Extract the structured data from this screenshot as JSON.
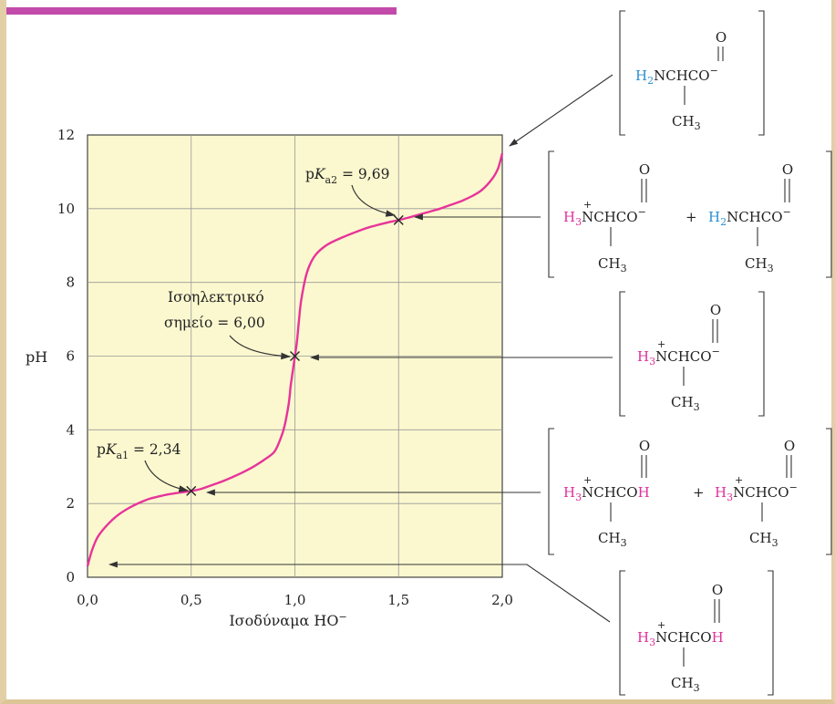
{
  "chart_data": {
    "type": "line",
    "xlabel": "Ισοδύναμα HO⁻",
    "ylabel": "pH",
    "xlim": [
      0,
      2
    ],
    "ylim": [
      0,
      12
    ],
    "x_ticks": [
      "0,0",
      "0,5",
      "1,0",
      "1,5",
      "2,0"
    ],
    "y_ticks": [
      "0",
      "2",
      "4",
      "6",
      "8",
      "10",
      "12"
    ],
    "grid": true,
    "plot_background": "#fbf8cf",
    "line_color": "#e8339a",
    "series": [
      {
        "x": [
          0.0,
          0.02,
          0.05,
          0.1,
          0.15,
          0.2,
          0.25,
          0.3,
          0.35,
          0.4,
          0.45,
          0.5,
          0.55,
          0.6,
          0.65,
          0.7,
          0.75,
          0.8,
          0.85,
          0.9,
          0.93,
          0.95,
          0.97,
          0.98,
          0.99,
          1.0,
          1.01,
          1.02,
          1.03,
          1.05,
          1.07,
          1.1,
          1.15,
          1.2,
          1.25,
          1.3,
          1.35,
          1.4,
          1.45,
          1.5,
          1.55,
          1.6,
          1.65,
          1.7,
          1.75,
          1.8,
          1.85,
          1.9,
          1.95,
          1.98,
          2.0
        ],
        "y": [
          0.3,
          0.7,
          1.1,
          1.45,
          1.7,
          1.88,
          2.02,
          2.13,
          2.2,
          2.26,
          2.3,
          2.34,
          2.4,
          2.5,
          2.6,
          2.72,
          2.85,
          3.0,
          3.18,
          3.4,
          3.75,
          4.1,
          4.7,
          5.2,
          5.6,
          6.0,
          6.4,
          7.0,
          7.5,
          8.1,
          8.45,
          8.75,
          9.0,
          9.15,
          9.27,
          9.38,
          9.48,
          9.56,
          9.63,
          9.69,
          9.76,
          9.84,
          9.92,
          10.0,
          10.1,
          10.2,
          10.33,
          10.5,
          10.8,
          11.1,
          11.5
        ]
      }
    ],
    "annotations": [
      {
        "label_parts": [
          "p",
          "K",
          "a2",
          " = 9,69"
        ],
        "x": 1.5,
        "y": 9.69
      },
      {
        "label_lines": [
          "Ισοηλεκτρικό",
          "σημείο = 6,00"
        ],
        "x": 1.0,
        "y": 6.0
      },
      {
        "label_parts": [
          "p",
          "K",
          "a1",
          " = 2,34"
        ],
        "x": 0.5,
        "y": 2.34
      }
    ]
  },
  "structures": {
    "carbonyl_o": "O",
    "ch3": "CH",
    "ch3_sub": "3",
    "plus": "+",
    "plus_sign": "+",
    "h2": "H",
    "h2_sub": "2",
    "h3": "H",
    "h3_sub": "3",
    "n_chain_anion": "NCHCO",
    "n_chain_acid": "NCHCO",
    "oh_h": "H",
    "minus": "−",
    "colors": {
      "protonated_h": "#e0309a",
      "free_amine_h": "#2a8fd0"
    }
  },
  "decor": {
    "top_bar_color": "#c24aaa",
    "frame_color": "#e3cfa5"
  }
}
